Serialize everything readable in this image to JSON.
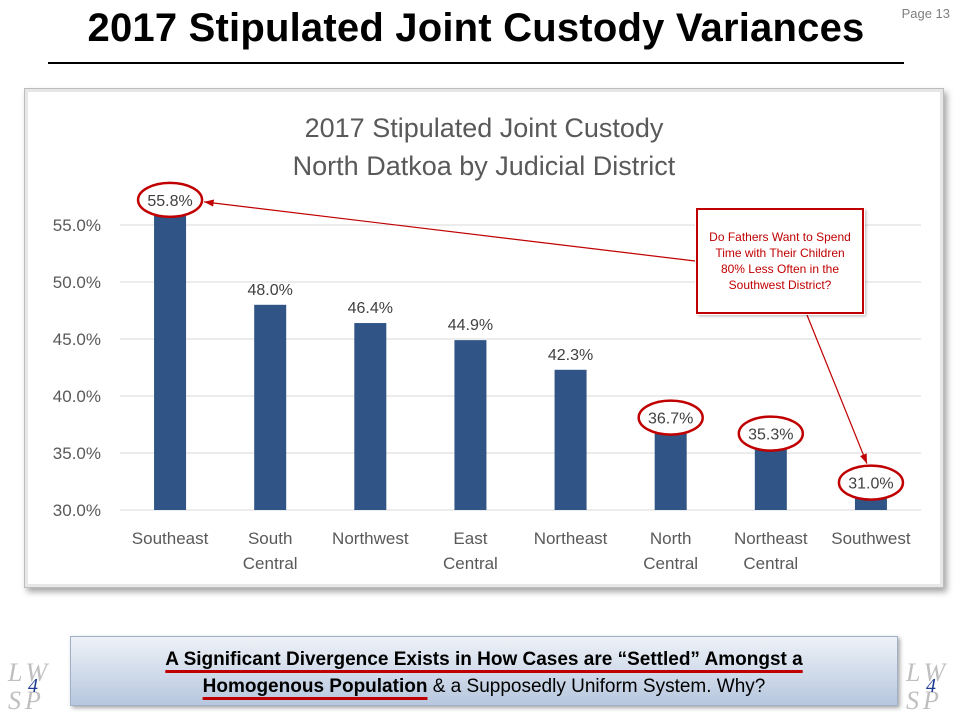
{
  "page": {
    "number_label": "Page 13",
    "title": "2017 Stipulated Joint Custody Variances"
  },
  "chart_data": {
    "type": "bar",
    "title": [
      "2017 Stipulated Joint Custody",
      "North Datkoa by Judicial District"
    ],
    "categories": [
      [
        "Southeast"
      ],
      [
        "South",
        "Central"
      ],
      [
        "Northwest"
      ],
      [
        "East",
        "Central"
      ],
      [
        "Northeast"
      ],
      [
        "North",
        "Central"
      ],
      [
        "Northeast",
        "Central"
      ],
      [
        "Southwest"
      ]
    ],
    "values": [
      55.8,
      48.0,
      46.4,
      44.9,
      42.3,
      36.7,
      35.3,
      31.0
    ],
    "data_labels": [
      "55.8%",
      "48.0%",
      "46.4%",
      "44.9%",
      "42.3%",
      "36.7%",
      "35.3%",
      "31.0%"
    ],
    "circled": [
      0,
      5,
      6,
      7
    ],
    "ylim": [
      30,
      55
    ],
    "yticks": [
      "30.0%",
      "35.0%",
      "40.0%",
      "45.0%",
      "50.0%",
      "55.0%"
    ],
    "bar_color": "#2f5485",
    "grid": true
  },
  "callout": {
    "text": "Do Fathers Want to Spend Time with Their Children 80% Less Often in the Southwest District?",
    "color": "#c00000"
  },
  "banner": {
    "part1": "A Significant Divergence Exists in How Cases are “Settled” Amongst a",
    "part2": "Homogenous Population",
    "part3": " & a Supposedly Uniform System.  Why?"
  },
  "logo": {
    "line1": "LW",
    "line2": "SP",
    "number": "4"
  }
}
